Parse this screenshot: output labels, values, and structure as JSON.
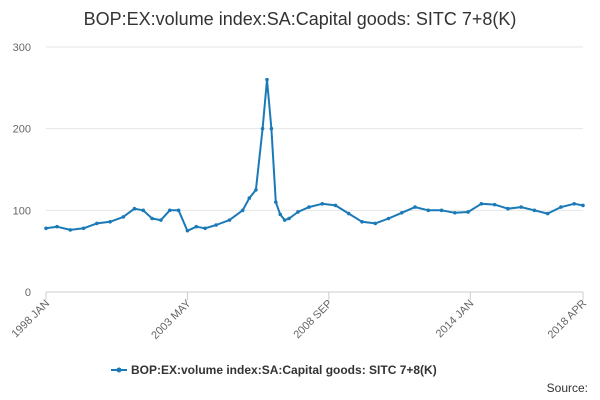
{
  "chart_data": {
    "type": "line",
    "title": "BOP:EX:volume index:SA:Capital goods: SITC 7+8(K)",
    "xlabel": "",
    "ylabel": "",
    "ylim": [
      0,
      300
    ],
    "yticks": [
      0,
      100,
      200,
      300
    ],
    "xlim": [
      "1998 JAN",
      "2018 APR"
    ],
    "xticks": [
      "1998 JAN",
      "2003 MAY",
      "2008 SEP",
      "2014 JAN",
      "2018 APR"
    ],
    "grid": true,
    "legend": "bottom-center",
    "series": [
      {
        "name": "BOP:EX:volume index:SA:Capital goods: SITC 7+8(K)",
        "color": "#1a7ab8",
        "x": [
          "1998 JAN",
          "1998 JUN",
          "1998 DEC",
          "1999 JUN",
          "1999 DEC",
          "2000 JUN",
          "2000 DEC",
          "2001 MAY",
          "2001 SEP",
          "2002 JAN",
          "2002 MAY",
          "2002 SEP",
          "2003 JAN",
          "2003 MAY",
          "2003 SEP",
          "2004 JAN",
          "2004 JUN",
          "2004 DEC",
          "2005 JUN",
          "2005 SEP",
          "2005 DEC",
          "2006 MAR",
          "2006 MAY",
          "2006 JUL",
          "2006 SEP",
          "2006 NOV",
          "2007 JAN",
          "2007 MAR",
          "2007 JUL",
          "2007 DEC",
          "2008 JUN",
          "2008 DEC",
          "2009 JUN",
          "2009 DEC",
          "2010 JUN",
          "2010 DEC",
          "2011 JUN",
          "2011 DEC",
          "2012 JUN",
          "2012 DEC",
          "2013 JUN",
          "2013 DEC",
          "2014 JUN",
          "2014 DEC",
          "2015 JUN",
          "2015 DEC",
          "2016 JUN",
          "2016 DEC",
          "2017 JUN",
          "2017 DEC",
          "2018 APR"
        ],
        "values": [
          78,
          80,
          76,
          78,
          84,
          86,
          92,
          102,
          100,
          90,
          88,
          100,
          100,
          75,
          80,
          78,
          82,
          88,
          100,
          115,
          125,
          200,
          260,
          200,
          110,
          95,
          88,
          90,
          98,
          104,
          108,
          106,
          96,
          86,
          84,
          90,
          97,
          104,
          100,
          100,
          97,
          98,
          108,
          107,
          102,
          104,
          100,
          96,
          104,
          108,
          106
        ]
      }
    ],
    "source_label": "Source:"
  }
}
